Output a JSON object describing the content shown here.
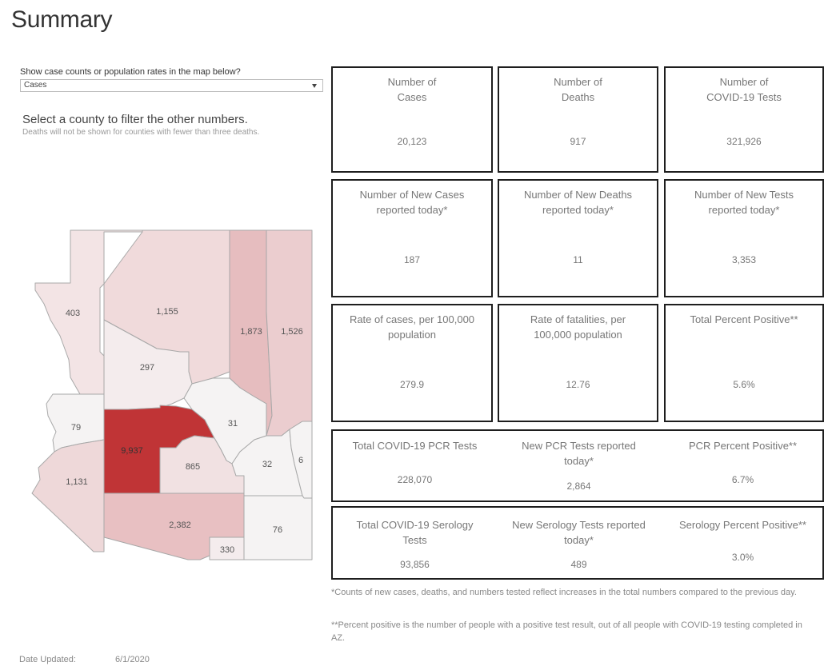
{
  "page": {
    "title": "Summary"
  },
  "map_control": {
    "label": "Show case counts or population rates in the map below?",
    "selected": "Cases"
  },
  "filter": {
    "heading": "Select a county to filter the other numbers.",
    "note": "Deaths will not be shown for counties with fewer than three deaths."
  },
  "map": {
    "counties": [
      {
        "id": "mohave",
        "value": "403",
        "color": "#f3e4e5"
      },
      {
        "id": "coconino",
        "value": "1,155",
        "color": "#f0dadb"
      },
      {
        "id": "navajo",
        "value": "1,873",
        "color": "#e6bdbf"
      },
      {
        "id": "apache",
        "value": "1,526",
        "color": "#ebcdcf"
      },
      {
        "id": "yavapai",
        "value": "297",
        "color": "#f4eced"
      },
      {
        "id": "la-paz",
        "value": "79",
        "color": "#f5f3f3"
      },
      {
        "id": "maricopa",
        "value": "9,937",
        "color": "#c03436"
      },
      {
        "id": "gila",
        "value": "31",
        "color": "#f5f3f3"
      },
      {
        "id": "yuma",
        "value": "1,131",
        "color": "#eed8d9"
      },
      {
        "id": "pinal",
        "value": "865",
        "color": "#f1e1e2"
      },
      {
        "id": "graham",
        "value": "32",
        "color": "#f5f3f3"
      },
      {
        "id": "greenlee",
        "value": "6",
        "color": "#f5f3f3"
      },
      {
        "id": "pima",
        "value": "2,382",
        "color": "#e8c0c2"
      },
      {
        "id": "cochise",
        "value": "76",
        "color": "#f5f3f3"
      },
      {
        "id": "santa-cruz",
        "value": "330",
        "color": "#f4eced"
      }
    ]
  },
  "stats": {
    "cases": {
      "label1": "Number of",
      "label2": "Cases",
      "value": "20,123"
    },
    "deaths": {
      "label1": "Number of",
      "label2": "Deaths",
      "value": "917"
    },
    "tests": {
      "label1": "Number of",
      "label2": "COVID-19 Tests",
      "value": "321,926"
    },
    "new_cases": {
      "label1": "Number of New Cases",
      "label2": "reported today*",
      "value": "187"
    },
    "new_deaths": {
      "label1": "Number of New Deaths",
      "label2": "reported today*",
      "value": "11"
    },
    "new_tests": {
      "label1": "Number of New Tests",
      "label2": "reported today*",
      "value": "3,353"
    },
    "case_rate": {
      "label1": "Rate of cases, per 100,000",
      "label2": "population",
      "value": "279.9"
    },
    "fatality_rate": {
      "label1": "Rate of fatalities, per",
      "label2": "100,000 population",
      "value": "12.76"
    },
    "percent_positive": {
      "label1": "Total Percent Positive**",
      "value": "5.6%"
    }
  },
  "pcr": {
    "total": {
      "label1": "Total COVID-19 PCR Tests",
      "value": "228,070"
    },
    "new": {
      "label1": "New PCR Tests reported",
      "label2": "today*",
      "value": "2,864"
    },
    "positive": {
      "label1": "PCR Percent Positive**",
      "value": "6.7%"
    }
  },
  "serology": {
    "total": {
      "label1": "Total COVID-19 Serology",
      "label2": "Tests",
      "value": "93,856"
    },
    "new": {
      "label1": "New Serology Tests reported",
      "label2": "today*",
      "value": "489"
    },
    "positive": {
      "label1": "Serology Percent Positive**",
      "value": "3.0%"
    }
  },
  "footnotes": {
    "note1": "*Counts of new cases, deaths, and numbers tested reflect increases in the total numbers compared to the previous day.",
    "note2": "**Percent positive is the number of people with a positive test result, out of all people with COVID-19 testing completed in AZ."
  },
  "date_updated": {
    "label": "Date Updated:",
    "value": "6/1/2020"
  }
}
